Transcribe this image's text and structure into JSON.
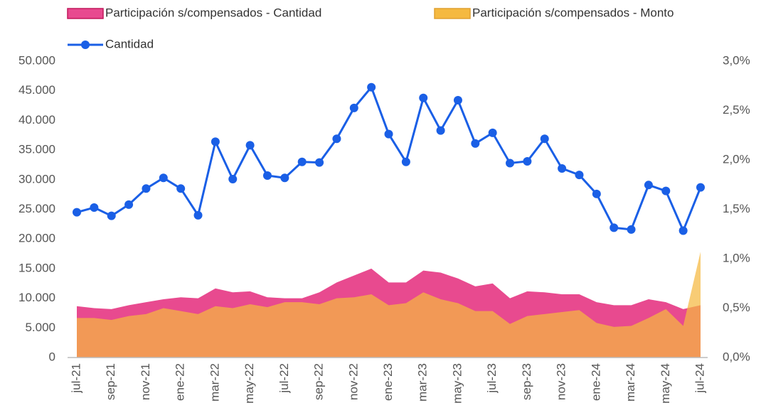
{
  "chart_data": {
    "type": "combo",
    "categories": [
      "jul-21",
      null,
      "sep-21",
      null,
      "nov-21",
      null,
      "ene-22",
      null,
      "mar-22",
      null,
      "may-22",
      null,
      "jul-22",
      null,
      "sep-22",
      null,
      "nov-22",
      null,
      "ene-23",
      null,
      "mar-23",
      null,
      "may-23",
      null,
      "jul-23",
      null,
      "sep-23",
      null,
      "nov-23",
      null,
      "ene-24",
      null,
      "mar-24",
      null,
      "may-24",
      null,
      "jul-24"
    ],
    "series": [
      {
        "name": "Participación s/compensados - Cantidad",
        "type": "area",
        "axis": "y2",
        "color": "#e84a8f",
        "values": [
          0.52,
          0.5,
          0.49,
          0.53,
          0.56,
          0.59,
          0.61,
          0.6,
          0.7,
          0.66,
          0.67,
          0.61,
          0.6,
          0.6,
          0.66,
          0.76,
          0.83,
          0.9,
          0.76,
          0.76,
          0.88,
          0.86,
          0.8,
          0.72,
          0.75,
          0.6,
          0.67,
          0.66,
          0.64,
          0.64,
          0.56,
          0.53,
          0.53,
          0.59,
          0.56,
          0.49,
          0.53
        ]
      },
      {
        "name": "Participación s/compensados - Monto",
        "type": "area",
        "axis": "y2",
        "color": "#f5b940",
        "values": [
          0.4,
          0.4,
          0.38,
          0.42,
          0.44,
          0.5,
          0.47,
          0.44,
          0.52,
          0.5,
          0.54,
          0.51,
          0.56,
          0.56,
          0.54,
          0.6,
          0.61,
          0.64,
          0.53,
          0.55,
          0.66,
          0.59,
          0.55,
          0.47,
          0.47,
          0.34,
          0.42,
          0.44,
          0.46,
          0.48,
          0.35,
          0.31,
          0.32,
          0.4,
          0.49,
          0.32,
          1.07
        ]
      },
      {
        "name": "Cantidad",
        "type": "line",
        "axis": "y",
        "color": "#1a5fe6",
        "values": [
          24500,
          25300,
          23900,
          25800,
          28500,
          30300,
          28500,
          24000,
          36400,
          30100,
          35800,
          30700,
          30300,
          33000,
          32900,
          36900,
          42100,
          45600,
          37700,
          33000,
          43800,
          38300,
          43400,
          36100,
          37900,
          32800,
          33100,
          36900,
          31900,
          30800,
          27600,
          21900,
          21600,
          29100,
          28100,
          21400,
          28700
        ]
      }
    ],
    "ylim": [
      0,
      50000
    ],
    "yticks": [
      0,
      {
        "value": 5000,
        "label": "5.000"
      },
      {
        "value": 10000,
        "label": "10.000"
      },
      {
        "value": 15000,
        "label": "15.000"
      },
      {
        "value": 20000,
        "label": "20.000"
      },
      {
        "value": 25000,
        "label": "25.000"
      },
      {
        "value": 30000,
        "label": "30.000"
      },
      {
        "value": 35000,
        "label": "35.000"
      },
      {
        "value": 40000,
        "label": "40.000"
      },
      {
        "value": 45000,
        "label": "45.000"
      },
      {
        "value": 50000,
        "label": "50.000"
      }
    ],
    "y2lim": [
      0,
      3.0
    ],
    "y2ticks": [
      {
        "value": 0,
        "label": "0,0%"
      },
      {
        "value": 0.5,
        "label": "0,5%"
      },
      {
        "value": 1.0,
        "label": "1,0%"
      },
      {
        "value": 1.5,
        "label": "1,5%"
      },
      {
        "value": 2.0,
        "label": "2,0%"
      },
      {
        "value": 2.5,
        "label": "2,5%"
      },
      {
        "value": 3.0,
        "label": "3,0%"
      }
    ]
  }
}
